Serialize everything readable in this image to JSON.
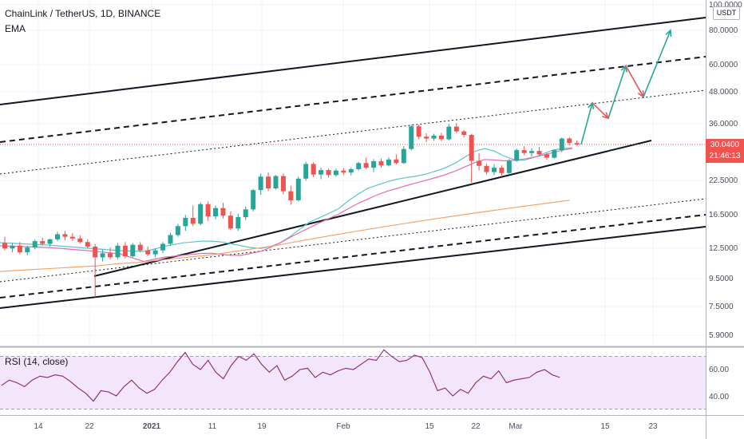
{
  "header": {
    "title": "ChainLink / TetherUS, 1D, BINANCE",
    "indicator": "EMA",
    "rsi_label": "RSI (14, close)",
    "currency": "USDT"
  },
  "price_flag": {
    "price": "30.0400",
    "countdown": "21:46:13"
  },
  "colors": {
    "up": "#26a69a",
    "down": "#ef5350",
    "ema_fast": "#5cc5c8",
    "ema_mid": "#e86bb3",
    "ema_slow": "#f4a46b",
    "rsi": "#8e2374",
    "rsi_band": "#f3e6fb",
    "projection_up": "#26a69a",
    "projection_down": "#ef5350"
  },
  "chart_data": {
    "type": "candlestick",
    "x_ticks": [
      "14",
      "22",
      "2021",
      "11",
      "19",
      "Feb",
      "15",
      "22",
      "Mar",
      "15",
      "23"
    ],
    "y_axis": {
      "scale": "log",
      "ticks": [
        "100.0000",
        "80.0000",
        "60.0000",
        "48.0000",
        "36.0000",
        "22.5000",
        "16.5000",
        "12.5000",
        "9.5000",
        "7.5000",
        "5.9000"
      ]
    },
    "last_price": 30.04,
    "candles": [
      {
        "o": 12.9,
        "h": 13.6,
        "l": 12.1,
        "c": 12.3
      },
      {
        "o": 12.3,
        "h": 12.9,
        "l": 11.9,
        "c": 12.6
      },
      {
        "o": 12.6,
        "h": 13.0,
        "l": 11.7,
        "c": 11.9
      },
      {
        "o": 11.9,
        "h": 12.6,
        "l": 11.6,
        "c": 12.4
      },
      {
        "o": 12.4,
        "h": 13.3,
        "l": 12.2,
        "c": 13.1
      },
      {
        "o": 13.1,
        "h": 13.5,
        "l": 12.6,
        "c": 12.8
      },
      {
        "o": 12.8,
        "h": 13.4,
        "l": 12.5,
        "c": 13.3
      },
      {
        "o": 13.3,
        "h": 14.2,
        "l": 13.1,
        "c": 13.9
      },
      {
        "o": 13.9,
        "h": 14.3,
        "l": 13.2,
        "c": 13.6
      },
      {
        "o": 13.6,
        "h": 14.0,
        "l": 13.1,
        "c": 13.4
      },
      {
        "o": 13.4,
        "h": 13.8,
        "l": 12.8,
        "c": 13.0
      },
      {
        "o": 13.0,
        "h": 13.3,
        "l": 12.3,
        "c": 12.5
      },
      {
        "o": 12.5,
        "h": 12.8,
        "l": 8.1,
        "c": 11.4
      },
      {
        "o": 11.4,
        "h": 12.2,
        "l": 11.0,
        "c": 11.8
      },
      {
        "o": 11.8,
        "h": 12.4,
        "l": 11.2,
        "c": 11.4
      },
      {
        "o": 11.4,
        "h": 12.9,
        "l": 11.2,
        "c": 12.6
      },
      {
        "o": 12.6,
        "h": 13.0,
        "l": 11.3,
        "c": 11.5
      },
      {
        "o": 11.5,
        "h": 12.9,
        "l": 11.4,
        "c": 12.7
      },
      {
        "o": 12.7,
        "h": 13.0,
        "l": 11.9,
        "c": 12.1
      },
      {
        "o": 12.1,
        "h": 12.5,
        "l": 11.5,
        "c": 11.7
      },
      {
        "o": 11.7,
        "h": 12.3,
        "l": 11.4,
        "c": 12.1
      },
      {
        "o": 12.1,
        "h": 13.0,
        "l": 11.8,
        "c": 12.8
      },
      {
        "o": 12.8,
        "h": 14.1,
        "l": 12.6,
        "c": 13.8
      },
      {
        "o": 13.8,
        "h": 15.2,
        "l": 13.6,
        "c": 14.9
      },
      {
        "o": 14.9,
        "h": 16.4,
        "l": 14.3,
        "c": 16.0
      },
      {
        "o": 16.0,
        "h": 17.8,
        "l": 14.9,
        "c": 15.2
      },
      {
        "o": 15.2,
        "h": 18.3,
        "l": 15.0,
        "c": 18.0
      },
      {
        "o": 18.0,
        "h": 18.4,
        "l": 15.6,
        "c": 16.2
      },
      {
        "o": 16.2,
        "h": 17.8,
        "l": 15.8,
        "c": 17.4
      },
      {
        "o": 17.4,
        "h": 18.2,
        "l": 15.9,
        "c": 16.3
      },
      {
        "o": 16.3,
        "h": 16.9,
        "l": 14.4,
        "c": 14.6
      },
      {
        "o": 14.6,
        "h": 16.6,
        "l": 14.3,
        "c": 16.1
      },
      {
        "o": 16.1,
        "h": 17.6,
        "l": 15.7,
        "c": 17.2
      },
      {
        "o": 17.2,
        "h": 20.5,
        "l": 16.9,
        "c": 20.3
      },
      {
        "o": 20.3,
        "h": 23.4,
        "l": 19.5,
        "c": 22.8
      },
      {
        "o": 22.8,
        "h": 23.6,
        "l": 20.1,
        "c": 20.6
      },
      {
        "o": 20.6,
        "h": 23.1,
        "l": 20.4,
        "c": 22.9
      },
      {
        "o": 22.9,
        "h": 23.4,
        "l": 19.6,
        "c": 20.1
      },
      {
        "o": 20.1,
        "h": 21.1,
        "l": 17.9,
        "c": 18.6
      },
      {
        "o": 18.6,
        "h": 22.8,
        "l": 18.4,
        "c": 22.4
      },
      {
        "o": 22.4,
        "h": 25.9,
        "l": 22.0,
        "c": 25.4
      },
      {
        "o": 25.4,
        "h": 25.8,
        "l": 22.7,
        "c": 23.2
      },
      {
        "o": 23.2,
        "h": 24.6,
        "l": 22.3,
        "c": 24.1
      },
      {
        "o": 24.1,
        "h": 24.4,
        "l": 22.6,
        "c": 23.1
      },
      {
        "o": 23.1,
        "h": 24.4,
        "l": 22.8,
        "c": 24.0
      },
      {
        "o": 24.0,
        "h": 24.5,
        "l": 23.1,
        "c": 23.6
      },
      {
        "o": 23.6,
        "h": 24.6,
        "l": 23.0,
        "c": 24.3
      },
      {
        "o": 24.3,
        "h": 25.9,
        "l": 24.0,
        "c": 25.6
      },
      {
        "o": 25.6,
        "h": 26.8,
        "l": 24.3,
        "c": 24.6
      },
      {
        "o": 24.6,
        "h": 26.5,
        "l": 23.7,
        "c": 26.0
      },
      {
        "o": 26.0,
        "h": 26.6,
        "l": 24.6,
        "c": 25.1
      },
      {
        "o": 25.1,
        "h": 26.9,
        "l": 24.9,
        "c": 26.4
      },
      {
        "o": 26.4,
        "h": 27.6,
        "l": 25.3,
        "c": 25.6
      },
      {
        "o": 25.6,
        "h": 29.6,
        "l": 25.4,
        "c": 28.9
      },
      {
        "o": 28.9,
        "h": 35.6,
        "l": 28.5,
        "c": 35.1
      },
      {
        "o": 35.1,
        "h": 35.6,
        "l": 31.4,
        "c": 32.1
      },
      {
        "o": 32.1,
        "h": 33.1,
        "l": 30.6,
        "c": 31.6
      },
      {
        "o": 31.6,
        "h": 32.9,
        "l": 31.0,
        "c": 32.4
      },
      {
        "o": 32.4,
        "h": 33.2,
        "l": 30.9,
        "c": 31.4
      },
      {
        "o": 31.4,
        "h": 35.8,
        "l": 31.1,
        "c": 35.0
      },
      {
        "o": 35.0,
        "h": 36.1,
        "l": 33.1,
        "c": 33.6
      },
      {
        "o": 33.6,
        "h": 34.0,
        "l": 31.9,
        "c": 32.6
      },
      {
        "o": 32.6,
        "h": 32.9,
        "l": 21.6,
        "c": 26.1
      },
      {
        "o": 26.1,
        "h": 27.9,
        "l": 24.0,
        "c": 25.0
      },
      {
        "o": 25.0,
        "h": 25.5,
        "l": 23.2,
        "c": 23.7
      },
      {
        "o": 23.7,
        "h": 25.4,
        "l": 23.1,
        "c": 24.6
      },
      {
        "o": 24.6,
        "h": 25.1,
        "l": 23.0,
        "c": 23.5
      },
      {
        "o": 23.5,
        "h": 26.5,
        "l": 23.2,
        "c": 26.1
      },
      {
        "o": 26.1,
        "h": 29.0,
        "l": 25.9,
        "c": 28.6
      },
      {
        "o": 28.6,
        "h": 29.6,
        "l": 27.4,
        "c": 27.9
      },
      {
        "o": 27.9,
        "h": 29.1,
        "l": 27.1,
        "c": 28.4
      },
      {
        "o": 28.4,
        "h": 29.4,
        "l": 27.3,
        "c": 27.6
      },
      {
        "o": 27.6,
        "h": 28.0,
        "l": 26.3,
        "c": 26.8
      },
      {
        "o": 26.8,
        "h": 28.8,
        "l": 26.6,
        "c": 28.6
      },
      {
        "o": 28.6,
        "h": 31.9,
        "l": 28.1,
        "c": 31.6
      },
      {
        "o": 31.6,
        "h": 32.0,
        "l": 29.9,
        "c": 30.4
      },
      {
        "o": 30.4,
        "h": 31.1,
        "l": 29.7,
        "c": 30.04
      }
    ],
    "series": [
      {
        "values": [
          12.0,
          12.2,
          12.5,
          12.7,
          12.9,
          13.0,
          13.1,
          13.1,
          13.0,
          12.8,
          12.6,
          12.4,
          12.3,
          12.5,
          12.9,
          13.6,
          14.5,
          15.4,
          16.0,
          16.6,
          17.3,
          18.5,
          19.6,
          20.6,
          21.2,
          21.8,
          22.3,
          22.6,
          22.9,
          23.3,
          23.9,
          24.6,
          25.6,
          27.0,
          28.3,
          29.0,
          28.4,
          27.2,
          26.4,
          26.2,
          26.8,
          27.7,
          28.6,
          29.0,
          29.2
        ]
      },
      {
        "values": [
          11.0,
          11.2,
          11.4,
          11.5,
          11.6,
          11.7,
          11.8,
          11.8,
          11.7,
          11.6,
          11.6,
          11.8,
          12.0,
          12.4,
          12.9,
          13.5,
          14.1,
          14.7,
          15.3,
          15.9,
          16.5,
          17.3,
          18.1,
          18.8,
          19.5,
          20.1,
          20.6,
          21.1,
          21.6,
          22.1,
          22.6,
          23.2,
          23.9,
          24.8,
          25.7,
          26.4,
          26.3,
          26.1,
          26.2,
          26.5,
          26.9,
          27.4,
          28.0,
          28.6,
          29.0
        ]
      },
      {
        "values": [
          10.1,
          10.2,
          10.3,
          10.4,
          10.5,
          10.6,
          10.8,
          10.9,
          11.1,
          11.3,
          11.5,
          11.7,
          12.0,
          12.3,
          12.6,
          13.0,
          13.4,
          13.8,
          14.2,
          14.6,
          15.0,
          15.4,
          15.8,
          16.2,
          16.6,
          17.0,
          17.4,
          17.8,
          18.2,
          18.6
        ]
      },
      {
        "name": "RSI (14, close)",
        "values": [
          48,
          52,
          50,
          47,
          52,
          55,
          54,
          56,
          55,
          51,
          46,
          42,
          36,
          44,
          43,
          40,
          47,
          52,
          46,
          42,
          45,
          52,
          58,
          66,
          73,
          64,
          60,
          67,
          58,
          53,
          63,
          70,
          67,
          72,
          64,
          58,
          63,
          52,
          55,
          60,
          61,
          54,
          58,
          56,
          59,
          61,
          60,
          64,
          68,
          67,
          75,
          70,
          66,
          67,
          71,
          69,
          58,
          44,
          46,
          40,
          45,
          42,
          50,
          55,
          53,
          59,
          50,
          52,
          53,
          54,
          58,
          60,
          56,
          54
        ]
      }
    ],
    "projection": {
      "points": [
        30.04,
        42.9,
        37.6,
        59.0,
        45.2,
        80.0
      ],
      "x_ticks_reached": [
        "15",
        "23"
      ]
    },
    "rsi_levels": [
      "60.00",
      "40.00"
    ],
    "grid": true
  }
}
